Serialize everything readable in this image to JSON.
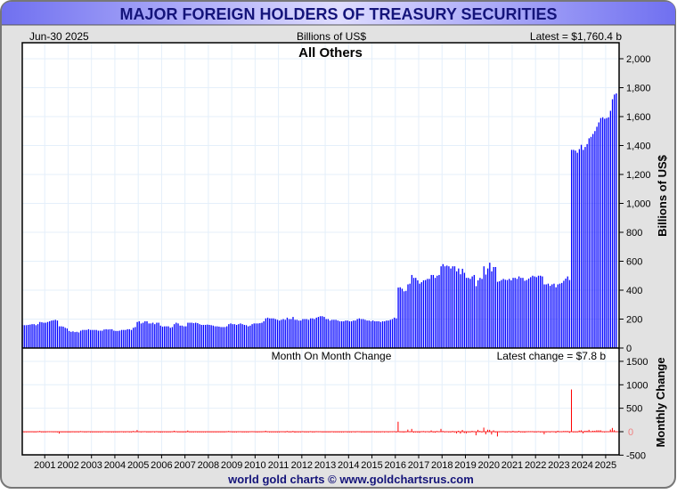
{
  "title": "MAJOR FOREIGN HOLDERS OF TREASURY SECURITIES",
  "header": {
    "date": "Jun-30  2025",
    "units": "Billions of US$",
    "latest": "Latest = $1,760.4 b"
  },
  "footer": "world gold charts © www.goldchartsrus.com",
  "colors": {
    "bars": "#0000ff",
    "change_bars": "#ff0000",
    "title_text": "#14147a",
    "grid": "#e4effa"
  },
  "chart_data": [
    {
      "type": "bar",
      "title": "All Others",
      "ylabel": "Billions of US$",
      "ylim": [
        0,
        2000
      ],
      "yticks": [
        0,
        200,
        400,
        600,
        800,
        1000,
        1200,
        1400,
        1600,
        1800,
        2000
      ],
      "ytick_labels": [
        "0",
        "200",
        "400",
        "600",
        "800",
        "1,000",
        "1,200",
        "1,400",
        "1,600",
        "1,800",
        "2,000"
      ],
      "x_start": "2000-01",
      "frequency": "monthly",
      "grid": true,
      "values": [
        160,
        158,
        158,
        160,
        162,
        165,
        165,
        158,
        165,
        180,
        178,
        175,
        175,
        180,
        185,
        190,
        192,
        195,
        190,
        150,
        150,
        148,
        140,
        135,
        118,
        112,
        115,
        110,
        112,
        108,
        120,
        125,
        125,
        125,
        130,
        125,
        125,
        125,
        125,
        120,
        120,
        120,
        128,
        130,
        128,
        130,
        130,
        120,
        118,
        118,
        120,
        125,
        125,
        125,
        130,
        130,
        125,
        140,
        145,
        180,
        185,
        170,
        175,
        185,
        185,
        170,
        170,
        175,
        165,
        175,
        175,
        155,
        148,
        150,
        150,
        150,
        140,
        145,
        165,
        175,
        170,
        155,
        155,
        150,
        150,
        175,
        175,
        175,
        172,
        175,
        172,
        165,
        160,
        160,
        160,
        162,
        160,
        158,
        155,
        150,
        150,
        148,
        145,
        145,
        145,
        150,
        165,
        170,
        165,
        165,
        160,
        165,
        170,
        165,
        160,
        158,
        150,
        155,
        165,
        170,
        170,
        170,
        172,
        175,
        185,
        205,
        210,
        205,
        205,
        205,
        200,
        195,
        190,
        195,
        200,
        195,
        210,
        200,
        200,
        215,
        195,
        195,
        190,
        190,
        200,
        200,
        200,
        195,
        205,
        205,
        200,
        210,
        215,
        220,
        220,
        215,
        200,
        200,
        190,
        195,
        195,
        195,
        190,
        185,
        185,
        185,
        190,
        190,
        185,
        185,
        190,
        190,
        200,
        205,
        200,
        200,
        195,
        190,
        190,
        185,
        190,
        185,
        185,
        185,
        180,
        185,
        185,
        190,
        190,
        195,
        200,
        210,
        205,
        418,
        420,
        410,
        392,
        395,
        440,
        445,
        505,
        485,
        485,
        468,
        445,
        455,
        468,
        470,
        478,
        478,
        505,
        505,
        485,
        500,
        505,
        565,
        580,
        565,
        570,
        565,
        550,
        565,
        565,
        530,
        550,
        510,
        548,
        520,
        485,
        485,
        478,
        495,
        505,
        428,
        468,
        485,
        478,
        565,
        508,
        550,
        590,
        530,
        560,
        560,
        458,
        462,
        470,
        478,
        472,
        470,
        478,
        468,
        485,
        485,
        478,
        495,
        485,
        485,
        465,
        470,
        480,
        490,
        500,
        495,
        490,
        500,
        500,
        495,
        440,
        440,
        445,
        430,
        440,
        445,
        420,
        440,
        445,
        450,
        465,
        480,
        495,
        470,
        1370,
        1370,
        1365,
        1350,
        1375,
        1405,
        1370,
        1390,
        1410,
        1450,
        1460,
        1480,
        1500,
        1530,
        1560,
        1590,
        1595,
        1585,
        1590,
        1595,
        1640,
        1720,
        1752.6,
        1760.4
      ]
    },
    {
      "type": "bar",
      "title": "Month On Month Change",
      "annotation": "Latest change = $7.8 b",
      "ylabel": "Monthly Change",
      "ylim": [
        -500,
        1500
      ],
      "yticks": [
        -500,
        0,
        500,
        1000,
        1500
      ],
      "ytick_labels": [
        "-500",
        "0",
        "500",
        "1000",
        "1500"
      ],
      "derived_from": "month-on-month difference of All Others values",
      "grid": true
    }
  ],
  "x_axis": {
    "tick_labels": [
      "2001",
      "2002",
      "2003",
      "2004",
      "2005",
      "2006",
      "2007",
      "2008",
      "2009",
      "2010",
      "2011",
      "2012",
      "2013",
      "2014",
      "2015",
      "2016",
      "2017",
      "2018",
      "2019",
      "2020",
      "2021",
      "2022",
      "2023",
      "2024",
      "2025"
    ]
  }
}
